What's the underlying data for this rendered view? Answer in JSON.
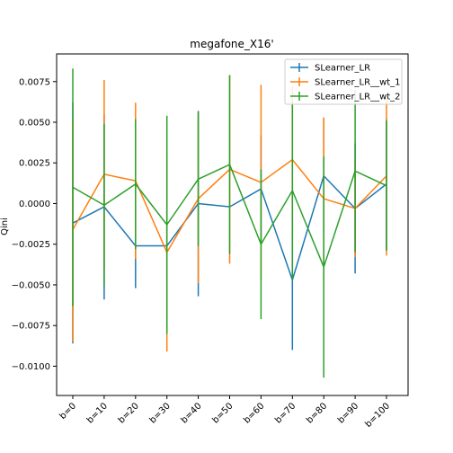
{
  "chart_data": {
    "type": "line",
    "title": "megafone_X16'",
    "xlabel": "",
    "ylabel": "Qini",
    "categories": [
      "b=0",
      "b=10",
      "b=20",
      "b=30",
      "b=40",
      "b=50",
      "b=60",
      "b=70",
      "b=80",
      "b=90",
      "b=100"
    ],
    "ylim": [
      -0.0118,
      0.0092
    ],
    "yticks": [
      -0.01,
      -0.0075,
      -0.005,
      -0.0025,
      0.0,
      0.0025,
      0.005,
      0.0075
    ],
    "ytick_labels": [
      "−0.0100",
      "−0.0075",
      "−0.0050",
      "−0.0025",
      "0.0000",
      "0.0025",
      "0.0050",
      "0.0075"
    ],
    "legend_position": "top-right",
    "grid": false,
    "series": [
      {
        "name": "SLearner_LR",
        "color": "#1f77b4",
        "values": [
          -0.0012,
          -0.0002,
          -0.0026,
          -0.0026,
          0.0,
          -0.0002,
          0.0009,
          -0.0047,
          0.0017,
          -0.0003,
          0.0012
        ],
        "err": [
          0.0074,
          0.0057,
          0.0026,
          0.0023,
          0.0057,
          0.0,
          0.0033,
          0.0043,
          0.0035,
          0.004,
          0.004
        ]
      },
      {
        "name": "SLearner_LR__wt_1",
        "color": "#ff7f0e",
        "values": [
          -0.0016,
          0.0018,
          0.0014,
          -0.003,
          0.0003,
          0.0021,
          0.0013,
          0.0027,
          0.0003,
          -0.0003,
          0.0017
        ],
        "err": [
          0.0069,
          0.0058,
          0.0048,
          0.0061,
          0.0052,
          0.0058,
          0.006,
          0.0045,
          0.005,
          0.003,
          0.0049
        ]
      },
      {
        "name": "SLearner_LR__wt_2",
        "color": "#2ca02c",
        "values": [
          0.001,
          -0.0001,
          0.0012,
          -0.0013,
          0.0015,
          0.0024,
          -0.0025,
          0.0008,
          -0.0039,
          0.002,
          0.0011
        ],
        "err": [
          0.0073,
          0.005,
          0.004,
          0.0067,
          0.0041,
          0.0055,
          0.0046,
          0.0055,
          0.0068,
          0.005,
          0.004
        ]
      }
    ]
  }
}
